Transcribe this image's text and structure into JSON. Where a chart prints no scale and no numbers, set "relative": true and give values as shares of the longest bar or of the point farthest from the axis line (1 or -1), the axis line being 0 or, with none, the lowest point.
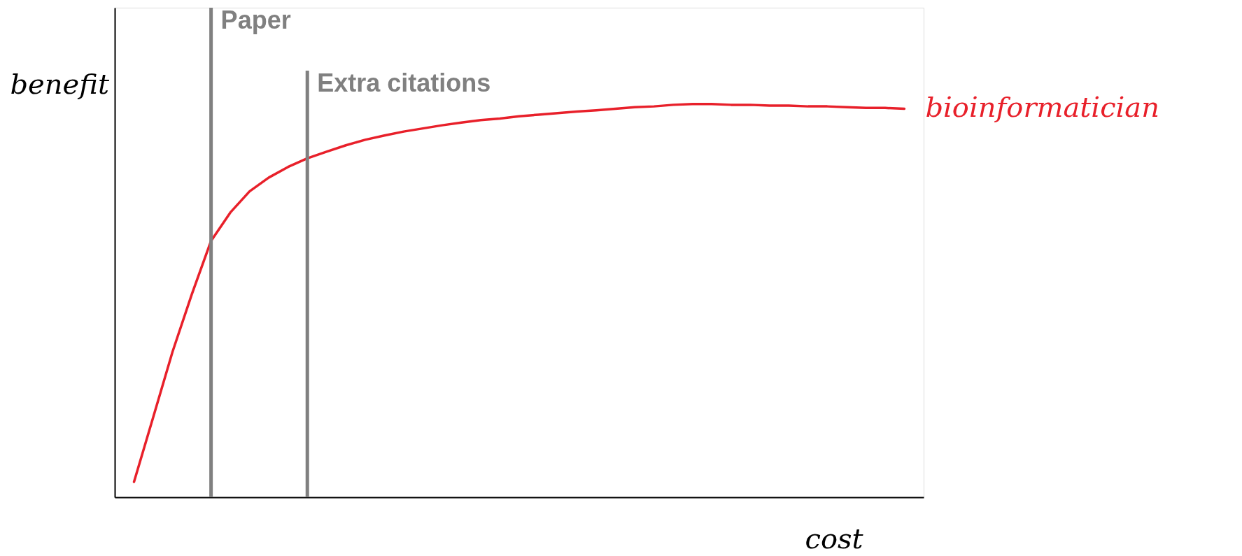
{
  "chart_data": {
    "type": "line",
    "relative": true,
    "xlabel": "cost",
    "ylabel": "benefit",
    "legend": false,
    "categories": [
      null,
      null,
      null,
      null,
      null,
      null,
      null,
      null,
      null,
      null,
      null,
      null,
      null,
      null,
      null,
      null,
      null,
      null,
      null,
      null,
      null,
      null,
      null,
      null,
      null,
      null,
      null,
      null,
      null,
      null,
      null,
      null,
      null,
      null,
      null,
      null,
      null,
      null,
      null,
      null,
      null
    ],
    "series": [
      {
        "name": "bioinformatician",
        "color": "#e8202a",
        "values": [
          0.039,
          0.204,
          0.37,
          0.516,
          0.652,
          0.724,
          0.778,
          0.813,
          0.84,
          0.862,
          0.879,
          0.895,
          0.909,
          0.92,
          0.93,
          0.938,
          0.946,
          0.953,
          0.959,
          0.963,
          0.969,
          0.973,
          0.977,
          0.981,
          0.984,
          0.988,
          0.992,
          0.994,
          0.998,
          1,
          1,
          0.998,
          0.998,
          0.996,
          0.996,
          0.994,
          0.994,
          0.992,
          0.99,
          0.99,
          0.988
        ]
      }
    ],
    "annotations": [
      "Paper",
      "Extra citations"
    ]
  }
}
